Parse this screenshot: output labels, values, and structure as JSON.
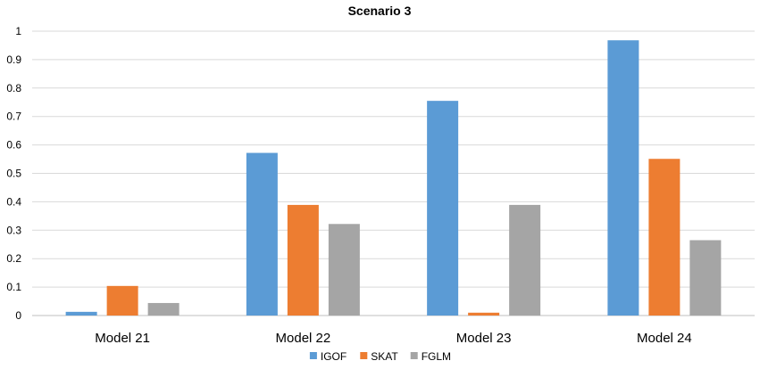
{
  "chart_data": {
    "type": "bar",
    "title": "Scenario 3",
    "xlabel": "",
    "ylabel": "",
    "categories": [
      "Model 21",
      "Model 22",
      "Model 23",
      "Model 24"
    ],
    "series": [
      {
        "name": "IGOF",
        "color": "#5b9bd5",
        "values": [
          0.013,
          0.572,
          0.755,
          0.968
        ]
      },
      {
        "name": "SKAT",
        "color": "#ed7d31",
        "values": [
          0.104,
          0.389,
          0.01,
          0.551
        ]
      },
      {
        "name": "FGLM",
        "color": "#a5a5a5",
        "values": [
          0.044,
          0.322,
          0.389,
          0.265
        ]
      }
    ],
    "ylim": [
      0,
      1
    ],
    "yticks": [
      "0",
      "0.1",
      "0.2",
      "0.3",
      "0.4",
      "0.5",
      "0.6",
      "0.7",
      "0.8",
      "0.9",
      "1"
    ],
    "grid": true,
    "legend_position": "bottom"
  }
}
